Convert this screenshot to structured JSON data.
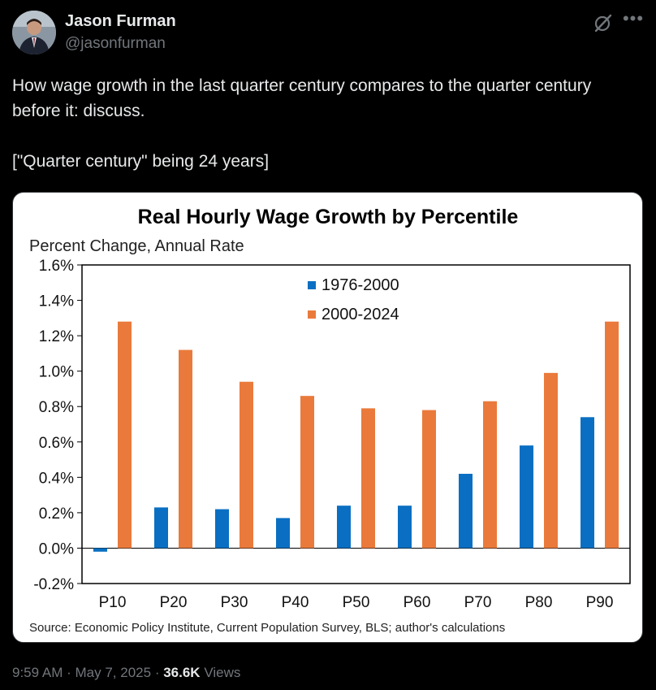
{
  "tweet": {
    "author_name": "Jason Furman",
    "author_handle": "@jasonfurman",
    "text": "How wage growth in the last quarter century compares to the quarter century before it: discuss.\n\n[\"Quarter century\" being 24 years]",
    "time": "9:59 AM",
    "date": "May 7, 2025",
    "sep": "·",
    "views_count": "36.6K",
    "views_label": "Views",
    "icons": {
      "grok": "grok-icon",
      "more": "more-icon"
    }
  },
  "chart_data": {
    "type": "bar",
    "title": "Real Hourly Wage Growth by Percentile",
    "ylabel": "Percent Change, Annual Rate",
    "source": "Source: Economic Policy Institute, Current Population Survey, BLS; author's calculations",
    "categories": [
      "P10",
      "P20",
      "P30",
      "P40",
      "P50",
      "P60",
      "P70",
      "P80",
      "P90"
    ],
    "series": [
      {
        "name": "1976-2000",
        "color": "#0a6fc2",
        "values": [
          -0.02,
          0.23,
          0.22,
          0.17,
          0.24,
          0.24,
          0.42,
          0.58,
          0.74
        ]
      },
      {
        "name": "2000-2024",
        "color": "#ea7a3b",
        "values": [
          1.28,
          1.12,
          0.94,
          0.86,
          0.79,
          0.78,
          0.83,
          0.99,
          1.28
        ]
      }
    ],
    "yticks": [
      "1.6%",
      "1.4%",
      "1.2%",
      "1.0%",
      "0.8%",
      "0.6%",
      "0.4%",
      "0.2%",
      "0.0%",
      "-0.2%"
    ],
    "ylim": [
      -0.2,
      1.6
    ],
    "grid": false,
    "legend": "top-center"
  }
}
